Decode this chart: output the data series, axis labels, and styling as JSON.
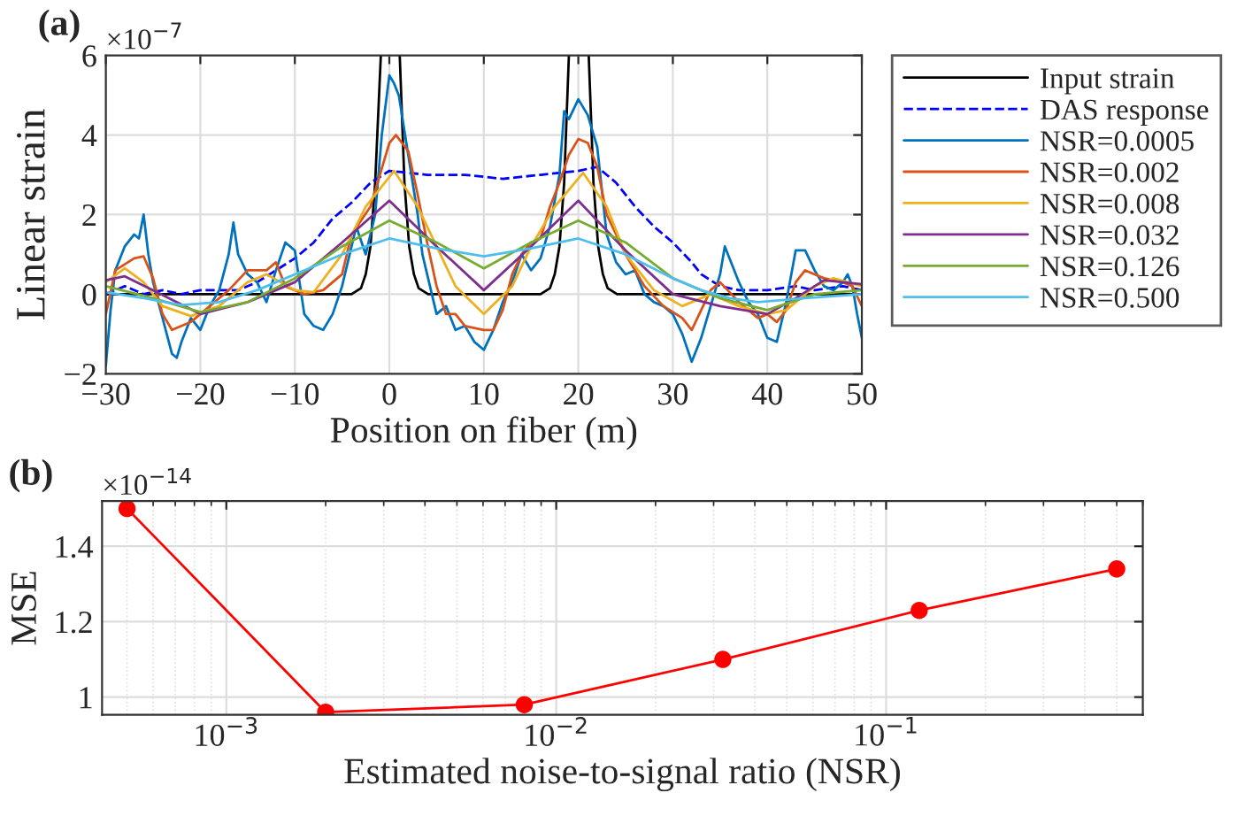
{
  "chart_data": [
    {
      "type": "line",
      "title": "(a)",
      "xlabel": "Position on fiber (m)",
      "ylabel": "Linear strain",
      "annotations": [
        "×10$^{−7}$"
      ],
      "xlim": [
        -30,
        50
      ],
      "ylim": [
        -2,
        6
      ],
      "xticks": [
        {
          "value": -30,
          "label": "−30"
        },
        {
          "value": -20,
          "label": "−20"
        },
        {
          "value": -10,
          "label": "−10"
        },
        0,
        10,
        20,
        30,
        40,
        50
      ],
      "yticks": [
        {
          "value": -2,
          "label": "−2"
        },
        0,
        2,
        4,
        6
      ],
      "grid": true,
      "legend": "right",
      "marker": "none",
      "series": [
        {
          "name": "Input strain",
          "color": "#000000",
          "line_style": "solid",
          "x": [
            -30,
            -4,
            -3,
            -2.5,
            -2,
            -1.5,
            -0.9,
            0.1,
            1.1,
            1.6,
            2.1,
            2.6,
            3.1,
            4.1,
            16,
            17,
            17.5,
            18,
            18.5,
            19,
            20.1,
            21.1,
            21.6,
            22.1,
            22.6,
            23.1,
            24.1,
            50
          ],
          "values": [
            0,
            0,
            0.15,
            0.5,
            1.2,
            2.8,
            6,
            null,
            6,
            2.8,
            1.2,
            0.5,
            0.15,
            0,
            0,
            0.15,
            0.5,
            1.2,
            2.8,
            6,
            null,
            6,
            2.8,
            1.2,
            0.5,
            0.15,
            0,
            0
          ]
        },
        {
          "name": "DAS response",
          "color": "#0000ff",
          "line_style": "dashed",
          "x": [
            -30,
            -28,
            -26,
            -24,
            -22,
            -20,
            -18,
            -16,
            -14,
            -12,
            -10,
            -8,
            -6,
            -4,
            -2,
            0,
            4,
            8,
            12,
            16,
            20,
            22,
            24,
            26,
            28,
            30,
            32,
            33,
            35,
            37,
            40,
            43,
            45,
            48,
            50
          ],
          "values": [
            0.0,
            0.2,
            0.0,
            0.1,
            0.0,
            0.1,
            0.1,
            0.1,
            0.3,
            0.6,
            0.9,
            1.3,
            1.9,
            2.3,
            2.8,
            3.1,
            3.0,
            3.0,
            2.9,
            3.0,
            3.1,
            3.2,
            2.8,
            2.2,
            1.7,
            1.3,
            0.8,
            0.5,
            0.2,
            0.1,
            0.1,
            0.2,
            0.1,
            0.2,
            0.1
          ]
        },
        {
          "name": "NSR=0.0005",
          "color": "#0072bd",
          "line_style": "solid",
          "x": [
            -30,
            -29.5,
            -29,
            -28,
            -27,
            -26.5,
            -26,
            -25.5,
            -25,
            -24,
            -23,
            -22.5,
            -22,
            -21,
            -20,
            -19,
            -18,
            -17,
            -16.5,
            -16,
            -15,
            -14,
            -13,
            -12,
            -11,
            -10,
            -9.5,
            -9,
            -8,
            -7,
            -6,
            -5,
            -4,
            -3.5,
            -2.5,
            -1.5,
            -0.8,
            0,
            0.5,
            1,
            2,
            3,
            3.5,
            4,
            5,
            6,
            7,
            8,
            9,
            10,
            11,
            12,
            13,
            14,
            15,
            16,
            17,
            18,
            18.5,
            19,
            20,
            21,
            22,
            23,
            24,
            25,
            26,
            27,
            28,
            29,
            30,
            31,
            32,
            33,
            34,
            35,
            35.5,
            36,
            37,
            38,
            39,
            40,
            41,
            42,
            43,
            44,
            45,
            46,
            47,
            48,
            48.5,
            49,
            49.5,
            50
          ],
          "values": [
            -1.8,
            -0.4,
            0.6,
            1.2,
            1.5,
            1.4,
            2.0,
            1.0,
            0.3,
            -0.6,
            -1.5,
            -1.6,
            -1.2,
            -0.6,
            -0.9,
            -0.3,
            0.1,
            1.0,
            1.8,
            1.0,
            0.5,
            0.3,
            -0.2,
            0.6,
            1.3,
            1.1,
            0.3,
            -0.5,
            -0.8,
            -0.9,
            -0.5,
            0.2,
            1.2,
            1.7,
            1.0,
            2.0,
            4.0,
            5.5,
            5.3,
            5.0,
            3.5,
            2.0,
            1.0,
            0.5,
            -0.5,
            -0.3,
            -0.9,
            -0.8,
            -1.2,
            -1.4,
            -0.9,
            -0.2,
            0.3,
            1.0,
            0.6,
            0.9,
            1.7,
            3.0,
            4.6,
            4.4,
            4.9,
            4.5,
            3.7,
            1.5,
            0.8,
            0.5,
            0.6,
            0.0,
            -0.2,
            -0.3,
            -0.5,
            -1.0,
            -1.7,
            -1.1,
            -0.3,
            0.5,
            1.2,
            0.9,
            0.3,
            -0.2,
            -0.5,
            -1.1,
            -1.2,
            -0.2,
            1.1,
            1.1,
            0.6,
            0.2,
            0.1,
            0.3,
            0.5,
            0.2,
            -0.5,
            -1.1
          ]
        },
        {
          "name": "NSR=0.002",
          "color": "#d95319",
          "line_style": "solid",
          "x": [
            -30,
            -29,
            -27,
            -26,
            -25,
            -24,
            -23,
            -21,
            -19,
            -17,
            -15,
            -13,
            -12,
            -11,
            -9,
            -7,
            -5,
            -4,
            -2,
            -1,
            0,
            0.7,
            2,
            3,
            4,
            5,
            6,
            7,
            8,
            10,
            11,
            12,
            13,
            14,
            15,
            16,
            17,
            18,
            19,
            20,
            21,
            22,
            23,
            25,
            27,
            29,
            31,
            32,
            33,
            34,
            35,
            37,
            39,
            40,
            41,
            42,
            43,
            44,
            46,
            48,
            49,
            50
          ],
          "values": [
            -0.5,
            0.6,
            0.9,
            0.95,
            0.4,
            -0.5,
            -0.9,
            -0.7,
            -0.3,
            0.1,
            0.6,
            0.6,
            0.8,
            0.2,
            0.0,
            0.1,
            0.5,
            1.5,
            2.2,
            3.0,
            3.8,
            4.0,
            3.6,
            2.5,
            1.3,
            0.2,
            -0.5,
            -0.5,
            -0.8,
            -0.9,
            -0.9,
            -0.4,
            0.5,
            1.0,
            1.3,
            1.4,
            2.2,
            2.8,
            3.5,
            3.9,
            3.8,
            3.2,
            2.0,
            1.0,
            0.2,
            -0.3,
            -0.6,
            -0.9,
            -0.4,
            0.1,
            0.3,
            -0.2,
            -0.6,
            -0.5,
            -0.7,
            -0.4,
            0.3,
            0.6,
            0.4,
            0.3,
            0.2,
            -0.3
          ]
        },
        {
          "name": "NSR=0.008",
          "color": "#edb120",
          "line_style": "solid",
          "x": [
            -30,
            -28,
            -26,
            -24,
            -21,
            -18,
            -15,
            -13,
            -10,
            -8,
            -5,
            -2.5,
            0.5,
            3,
            5,
            7,
            10,
            13,
            15,
            17.5,
            20.5,
            23,
            25,
            28,
            31,
            34,
            37,
            40,
            42,
            45,
            47,
            50
          ],
          "values": [
            0.3,
            0.65,
            0.3,
            -0.3,
            -0.55,
            -0.3,
            0.3,
            0.5,
            0.1,
            0.05,
            1.0,
            2.2,
            3.1,
            2.2,
            1.2,
            0.2,
            -0.5,
            0.2,
            1.2,
            2.2,
            3.05,
            2.2,
            1.0,
            0.1,
            -0.3,
            0.0,
            -0.3,
            -0.5,
            -0.4,
            0.2,
            0.4,
            0.2
          ]
        },
        {
          "name": "NSR=0.032",
          "color": "#7e2f8e",
          "line_style": "solid",
          "x": [
            -30,
            -28,
            -25,
            -20,
            -15,
            -10,
            -5,
            0,
            5,
            10,
            15,
            20,
            25,
            30,
            35,
            40,
            43,
            46,
            50
          ],
          "values": [
            0.35,
            0.45,
            0.1,
            -0.5,
            -0.2,
            0.3,
            1.3,
            2.35,
            1.2,
            0.1,
            1.2,
            2.35,
            1.1,
            0.0,
            -0.3,
            -0.5,
            -0.1,
            0.35,
            0.25
          ]
        },
        {
          "name": "NSR=0.126",
          "color": "#77ac30",
          "line_style": "solid",
          "x": [
            -30,
            -25,
            -20,
            -15,
            -10,
            -5,
            0,
            5,
            10,
            15,
            20,
            25,
            30,
            35,
            40,
            45,
            50
          ],
          "values": [
            0.2,
            -0.1,
            -0.45,
            -0.2,
            0.4,
            1.2,
            1.85,
            1.3,
            0.65,
            1.3,
            1.85,
            1.3,
            0.4,
            -0.1,
            -0.4,
            0.0,
            0.1
          ]
        },
        {
          "name": "NSR=0.500",
          "color": "#4dbeee",
          "line_style": "solid",
          "x": [
            -30,
            -26,
            -22,
            -18,
            -14,
            -10,
            -5,
            0,
            5,
            10,
            15,
            20,
            25,
            30,
            33,
            36,
            39,
            44,
            50
          ],
          "values": [
            0.05,
            -0.1,
            -0.27,
            -0.2,
            0.1,
            0.5,
            1.0,
            1.4,
            1.15,
            0.95,
            1.15,
            1.4,
            1.0,
            0.4,
            0.1,
            -0.1,
            -0.2,
            -0.1,
            0.0
          ]
        }
      ]
    },
    {
      "type": "line",
      "title": "(b)",
      "xlabel": "Estimated noise-to-signal ratio (NSR)",
      "ylabel": "MSE",
      "annotations": [
        "×10$^{−14}$"
      ],
      "log": "x",
      "xlim": [
        0.00042,
        0.6
      ],
      "ylim": [
        0.953,
        1.52
      ],
      "xticks": [
        {
          "value": 0.001,
          "label": "10$^{−3}$"
        },
        {
          "value": 0.01,
          "label": "10$^{−2}$"
        },
        {
          "value": 0.1,
          "label": "10$^{−1}$"
        }
      ],
      "yticks": [
        1,
        1.2,
        1.4
      ],
      "grid": true,
      "legend": false,
      "marker": "circle",
      "series": [
        {
          "color": "#ff0000",
          "line_style": "solid",
          "x": [
            0.0005,
            0.002,
            0.008,
            0.032,
            0.126,
            0.5
          ],
          "values": [
            1.5,
            0.96,
            0.98,
            1.1,
            1.23,
            1.34
          ]
        }
      ]
    }
  ]
}
